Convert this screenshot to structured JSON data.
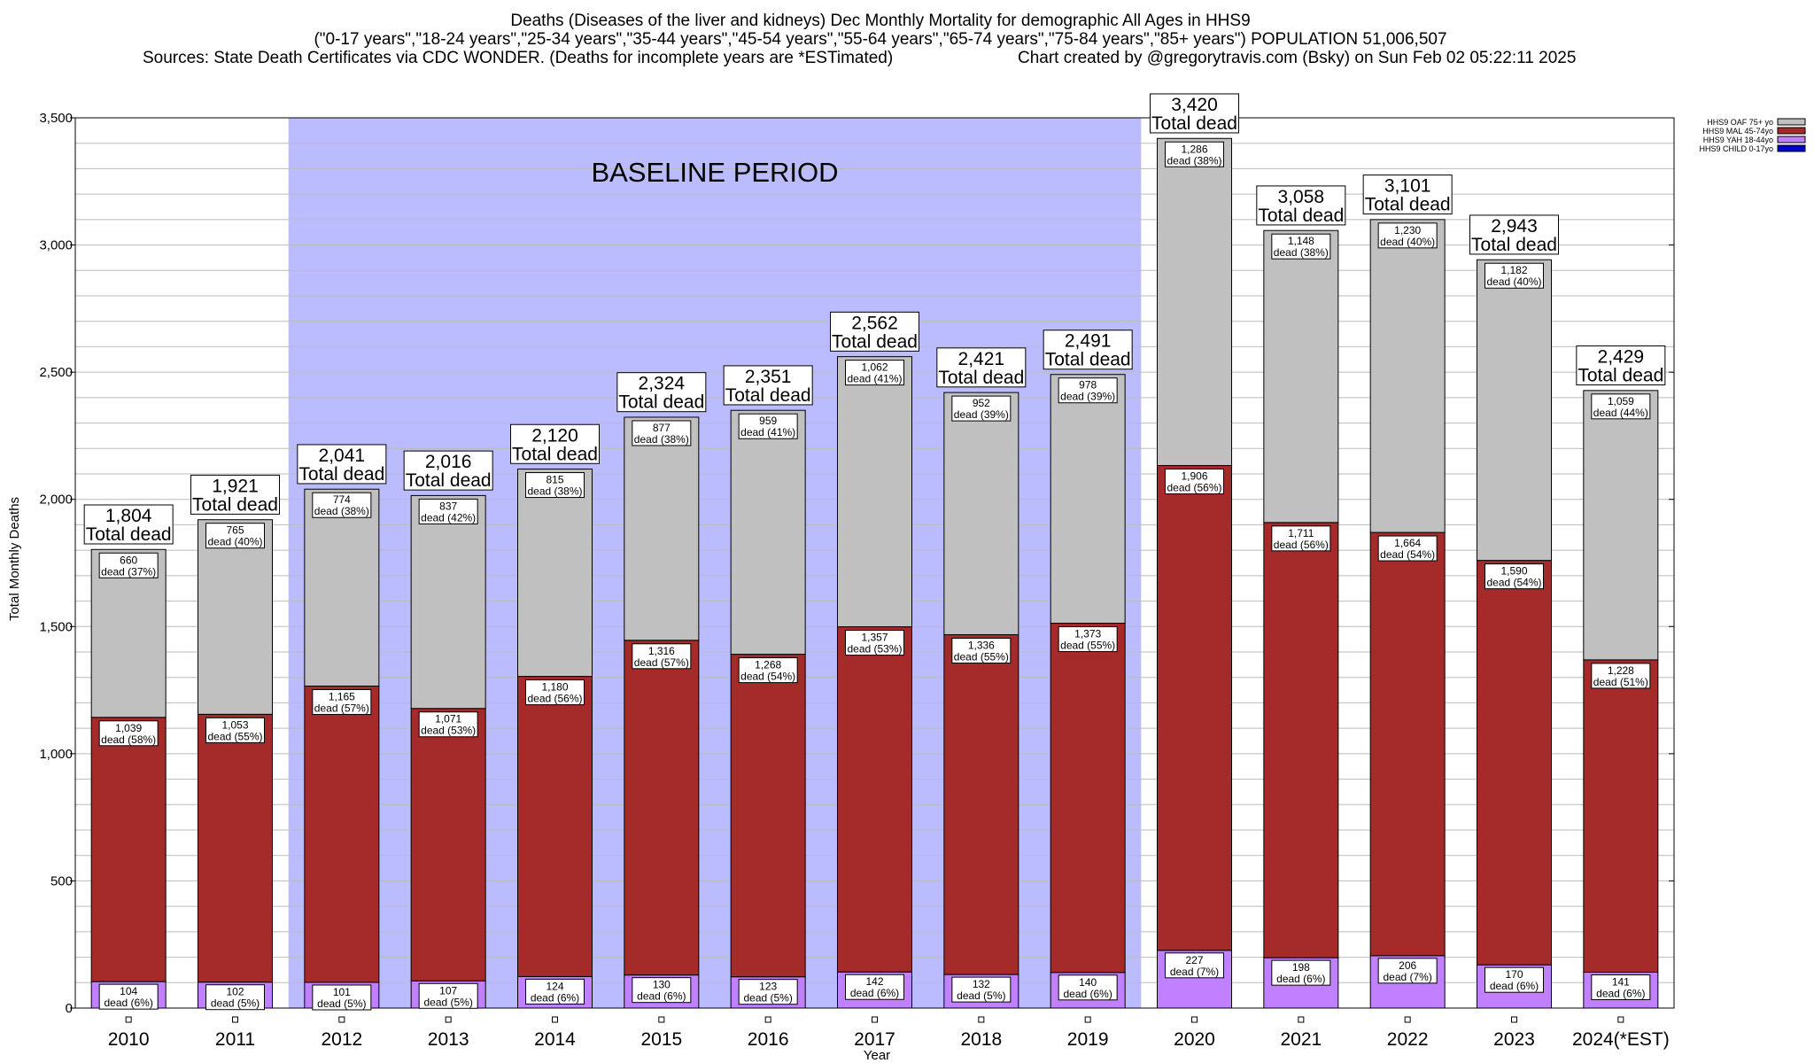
{
  "title_lines": [
    "Deaths (Diseases of the liver and kidneys) Dec Monthly Mortality for demographic All Ages in HHS9",
    "(\"0-17 years\",\"18-24 years\",\"25-34 years\",\"35-44 years\",\"45-54 years\",\"55-64 years\",\"65-74 years\",\"75-84 years\",\"85+ years\") POPULATION 51,006,507",
    "Sources: State Death Certificates via CDC WONDER. (Deaths for incomplete years are *ESTimated)",
    "Chart created by @gregorytravis.com (Bsky) on Sun Feb 02 05:22:11 2025"
  ],
  "baseline_label": "BASELINE PERIOD",
  "total_suffix": "Total dead",
  "dead_word": "dead",
  "colors": {
    "oaf": "#c0c0c0",
    "mal": "#a52a2a",
    "yah": "#c080ff",
    "child": "#0000cc",
    "baseline": "#bbbbff",
    "grid": "#bbbbbb"
  },
  "chart_data": {
    "type": "bar",
    "stacked": true,
    "xlabel": "Year",
    "ylabel": "Total Monthly Deaths",
    "ylim": [
      0,
      3500
    ],
    "yticks": [
      0,
      500,
      1000,
      1500,
      2000,
      2500,
      3000,
      3500
    ],
    "ytick_labels": [
      "0",
      "500",
      "1,000",
      "1,500",
      "2,000",
      "2,500",
      "3,000",
      "3,500"
    ],
    "categories": [
      "2010",
      "2011",
      "2012",
      "2013",
      "2014",
      "2015",
      "2016",
      "2017",
      "2018",
      "2019",
      "2020",
      "2021",
      "2022",
      "2023",
      "2024(*EST)"
    ],
    "baseline_period": [
      "2012",
      "2019"
    ],
    "legend_position": "top-right",
    "series": [
      {
        "name": "HHS9 CHILD 0-17yo",
        "key": "child",
        "values": [
          0,
          0,
          0,
          0,
          0,
          0,
          0,
          0,
          0,
          0,
          0,
          0,
          0,
          0,
          0
        ],
        "labels": [
          "",
          "",
          "",
          "",
          "",
          "",
          "",
          "",
          "",
          "",
          "",
          "",
          "",
          "",
          ""
        ],
        "pct": [
          "",
          "",
          "",
          "",
          "",
          "",
          "",
          "",
          "",
          "",
          "",
          "",
          "",
          "",
          ""
        ]
      },
      {
        "name": "HHS9 YAH 18-44yo",
        "key": "yah",
        "values": [
          104,
          102,
          101,
          107,
          124,
          130,
          123,
          142,
          132,
          140,
          227,
          198,
          206,
          170,
          141
        ],
        "labels": [
          "104",
          "102",
          "101",
          "107",
          "124",
          "130",
          "123",
          "142",
          "132",
          "140",
          "227",
          "198",
          "206",
          "170",
          "141"
        ],
        "pct": [
          "6%",
          "5%",
          "5%",
          "5%",
          "6%",
          "6%",
          "5%",
          "6%",
          "5%",
          "6%",
          "7%",
          "6%",
          "7%",
          "6%",
          "6%"
        ]
      },
      {
        "name": "HHS9 MAL 45-74yo",
        "key": "mal",
        "values": [
          1039,
          1053,
          1165,
          1071,
          1180,
          1316,
          1268,
          1357,
          1336,
          1373,
          1906,
          1711,
          1664,
          1590,
          1228
        ],
        "labels": [
          "1,039",
          "1,053",
          "1,165",
          "1,071",
          "1,180",
          "1,316",
          "1,268",
          "1,357",
          "1,336",
          "1,373",
          "1,906",
          "1,711",
          "1,664",
          "1,590",
          "1,228"
        ],
        "pct": [
          "58%",
          "55%",
          "57%",
          "53%",
          "56%",
          "57%",
          "54%",
          "53%",
          "55%",
          "55%",
          "56%",
          "56%",
          "54%",
          "54%",
          "51%"
        ]
      },
      {
        "name": "HHS9 OAF 75+ yo",
        "key": "oaf",
        "values": [
          660,
          765,
          774,
          837,
          815,
          877,
          959,
          1062,
          952,
          978,
          1286,
          1148,
          1230,
          1182,
          1059
        ],
        "labels": [
          "660",
          "765",
          "774",
          "837",
          "815",
          "877",
          "959",
          "1,062",
          "952",
          "978",
          "1,286",
          "1,148",
          "1,230",
          "1,182",
          "1,059"
        ],
        "pct": [
          "37%",
          "40%",
          "38%",
          "42%",
          "38%",
          "38%",
          "41%",
          "41%",
          "39%",
          "39%",
          "38%",
          "38%",
          "40%",
          "40%",
          "44%"
        ]
      }
    ],
    "totals": [
      1804,
      1921,
      2041,
      2016,
      2120,
      2324,
      2351,
      2562,
      2421,
      2491,
      3420,
      3058,
      3101,
      2943,
      2429
    ],
    "total_labels": [
      "1,804",
      "1,921",
      "2,041",
      "2,016",
      "2,120",
      "2,324",
      "2,351",
      "2,562",
      "2,421",
      "2,491",
      "3,420",
      "3,058",
      "3,101",
      "2,943",
      "2,429"
    ]
  }
}
